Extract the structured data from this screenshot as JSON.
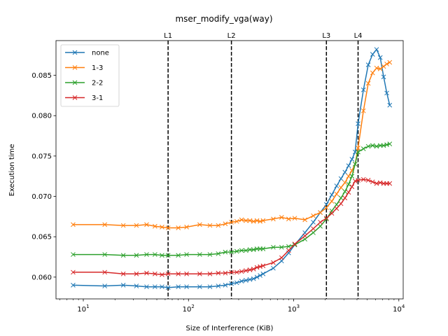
{
  "chart_data": {
    "type": "line",
    "title": "mser_modify_vga(way)",
    "xlabel": "Size of Interference (KiB)",
    "ylabel": "Execution time",
    "xscale": "log",
    "xlim": [
      5.5,
      11000
    ],
    "ylim": [
      0.0573,
      0.0893
    ],
    "yticks": [
      0.06,
      0.065,
      0.07,
      0.075,
      0.08,
      0.085
    ],
    "ytick_labels": [
      "0.060",
      "0.065",
      "0.070",
      "0.075",
      "0.080",
      "0.085"
    ],
    "xticks": [
      10,
      100,
      1000,
      10000
    ],
    "xtick_labels": [
      "10",
      "2",
      "3",
      "4"
    ],
    "legend_position": "top-left",
    "vlines": [
      {
        "label": "L1",
        "x": 64
      },
      {
        "label": "L2",
        "x": 256
      },
      {
        "label": "L3",
        "x": 2048
      },
      {
        "label": "L4",
        "x": 4096
      }
    ],
    "x": [
      8,
      16,
      24,
      32,
      40,
      48,
      56,
      64,
      80,
      96,
      128,
      160,
      192,
      224,
      256,
      288,
      320,
      352,
      384,
      416,
      448,
      480,
      512,
      640,
      768,
      896,
      1024,
      1280,
      1536,
      1792,
      2048,
      2304,
      2560,
      2816,
      3072,
      3328,
      3584,
      3840,
      4096,
      4608,
      5120,
      5632,
      6144,
      6656,
      7168,
      7680,
      8192
    ],
    "series": [
      {
        "name": "none",
        "color": "#1f77b4",
        "values": [
          0.059,
          0.0589,
          0.059,
          0.0589,
          0.0588,
          0.0588,
          0.0588,
          0.0587,
          0.0588,
          0.0588,
          0.0588,
          0.0588,
          0.0589,
          0.059,
          0.0592,
          0.0593,
          0.0595,
          0.0596,
          0.0597,
          0.0598,
          0.06,
          0.0602,
          0.0604,
          0.0611,
          0.062,
          0.063,
          0.064,
          0.0655,
          0.0668,
          0.068,
          0.069,
          0.0702,
          0.0713,
          0.0722,
          0.073,
          0.0738,
          0.0746,
          0.0755,
          0.079,
          0.0832,
          0.0863,
          0.0876,
          0.0882,
          0.0872,
          0.0848,
          0.0828,
          0.0813
        ]
      },
      {
        "name": "1-3",
        "color": "#ff7f0e",
        "values": [
          0.0665,
          0.0665,
          0.0664,
          0.0664,
          0.0665,
          0.0663,
          0.0662,
          0.0661,
          0.0661,
          0.0662,
          0.0665,
          0.0664,
          0.0664,
          0.0666,
          0.0668,
          0.0669,
          0.0671,
          0.067,
          0.067,
          0.0669,
          0.067,
          0.0669,
          0.067,
          0.0672,
          0.0674,
          0.0672,
          0.0673,
          0.0671,
          0.0676,
          0.068,
          0.0686,
          0.0694,
          0.0703,
          0.0711,
          0.0717,
          0.0725,
          0.0732,
          0.074,
          0.076,
          0.0806,
          0.084,
          0.0853,
          0.0859,
          0.0858,
          0.0861,
          0.0864,
          0.0866
        ]
      },
      {
        "name": "2-2",
        "color": "#2ca02c",
        "values": [
          0.0628,
          0.0628,
          0.0627,
          0.0627,
          0.0628,
          0.0628,
          0.0627,
          0.0627,
          0.0627,
          0.0628,
          0.0628,
          0.0628,
          0.0629,
          0.0631,
          0.0631,
          0.0632,
          0.0633,
          0.0633,
          0.0634,
          0.0634,
          0.0635,
          0.0635,
          0.0635,
          0.0637,
          0.0637,
          0.0638,
          0.064,
          0.0647,
          0.0655,
          0.0663,
          0.0672,
          0.0682,
          0.069,
          0.0698,
          0.0706,
          0.0715,
          0.0725,
          0.074,
          0.0755,
          0.0759,
          0.0762,
          0.0763,
          0.0762,
          0.0763,
          0.0763,
          0.0764,
          0.0765
        ]
      },
      {
        "name": "3-1",
        "color": "#d62728",
        "values": [
          0.0606,
          0.0606,
          0.0604,
          0.0604,
          0.0605,
          0.0604,
          0.0603,
          0.0604,
          0.0604,
          0.0604,
          0.0604,
          0.0604,
          0.0605,
          0.0605,
          0.0606,
          0.0606,
          0.0607,
          0.0608,
          0.0609,
          0.061,
          0.0612,
          0.0613,
          0.0614,
          0.0618,
          0.0624,
          0.0633,
          0.0641,
          0.0651,
          0.066,
          0.0668,
          0.0673,
          0.0679,
          0.0685,
          0.0691,
          0.0698,
          0.0705,
          0.0712,
          0.0719,
          0.072,
          0.0721,
          0.072,
          0.0718,
          0.0716,
          0.0717,
          0.0716,
          0.0716,
          0.0716
        ]
      }
    ]
  }
}
